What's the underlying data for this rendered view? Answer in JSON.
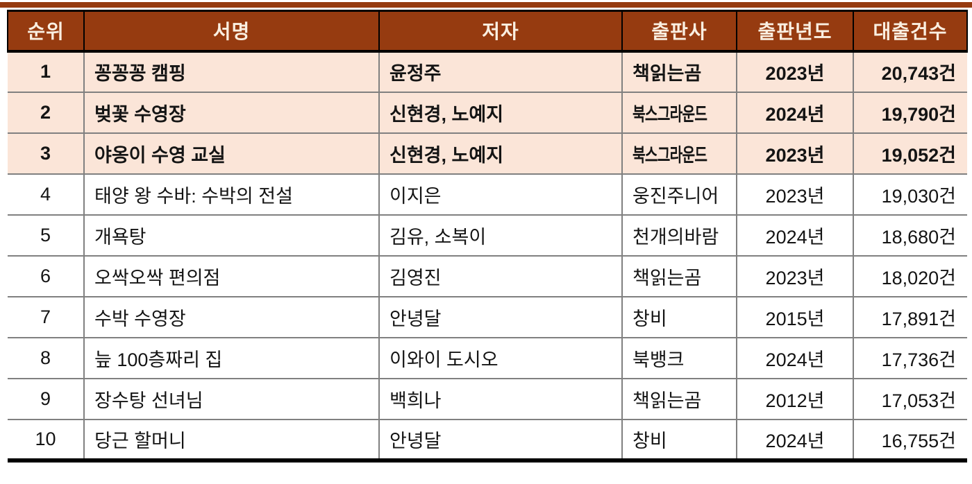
{
  "colors": {
    "header_bg": "#963B10",
    "header_text": "#FAEFE1",
    "highlight_bg": "#FBE5D8",
    "grid_line": "#808080",
    "heavy_line": "#000000",
    "top_rule": "#963B10"
  },
  "table": {
    "columns": [
      {
        "key": "rank",
        "label": "순위"
      },
      {
        "key": "title",
        "label": "서명"
      },
      {
        "key": "author",
        "label": "저자"
      },
      {
        "key": "publisher",
        "label": "출판사"
      },
      {
        "key": "year",
        "label": "출판년도"
      },
      {
        "key": "loans",
        "label": "대출건수"
      }
    ],
    "rows": [
      {
        "rank": "1",
        "title": "꽁꽁꽁 캠핑",
        "author": "윤정주",
        "publisher": "책읽는곰",
        "year": "2023년",
        "loans": "20,743건",
        "highlight": true
      },
      {
        "rank": "2",
        "title": "벚꽃 수영장",
        "author": "신현경, 노예지",
        "publisher": "북스그라운드",
        "year": "2024년",
        "loans": "19,790건",
        "highlight": true,
        "publisher_condensed": true
      },
      {
        "rank": "3",
        "title": "야옹이 수영 교실",
        "author": "신현경, 노예지",
        "publisher": "북스그라운드",
        "year": "2023년",
        "loans": "19,052건",
        "highlight": true,
        "publisher_condensed": true
      },
      {
        "rank": "4",
        "title": "태양 왕 수바: 수박의 전설",
        "author": "이지은",
        "publisher": "웅진주니어",
        "year": "2023년",
        "loans": "19,030건"
      },
      {
        "rank": "5",
        "title": "개욕탕",
        "author": "김유, 소복이",
        "publisher": "천개의바람",
        "year": "2024년",
        "loans": "18,680건"
      },
      {
        "rank": "6",
        "title": "오싹오싹 편의점",
        "author": "김영진",
        "publisher": "책읽는곰",
        "year": "2023년",
        "loans": "18,020건"
      },
      {
        "rank": "7",
        "title": "수박 수영장",
        "author": "안녕달",
        "publisher": "창비",
        "year": "2015년",
        "loans": "17,891건"
      },
      {
        "rank": "8",
        "title": "늪 100층짜리 집",
        "author": "이와이 도시오",
        "publisher": "북뱅크",
        "year": "2024년",
        "loans": "17,736건"
      },
      {
        "rank": "9",
        "title": "장수탕 선녀님",
        "author": "백희나",
        "publisher": "책읽는곰",
        "year": "2012년",
        "loans": "17,053건"
      },
      {
        "rank": "10",
        "title": "당근 할머니",
        "author": "안녕달",
        "publisher": "창비",
        "year": "2024년",
        "loans": "16,755건"
      }
    ]
  }
}
